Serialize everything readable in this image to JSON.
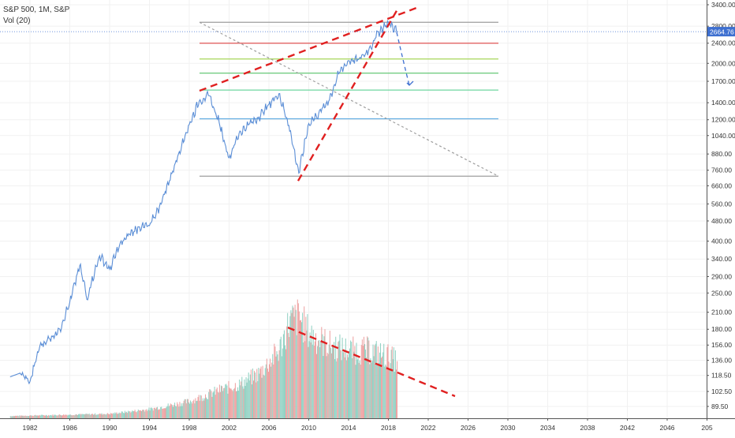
{
  "header": {
    "symbol_line": "S&P 500, 1M, S&P",
    "volume_line": "Vol (20)"
  },
  "chart_data": {
    "type": "line",
    "price_scale": "log",
    "x_ticks": [
      "1982",
      "1986",
      "1990",
      "1994",
      "1998",
      "2002",
      "2006",
      "2010",
      "2014",
      "2018",
      "2022",
      "2026",
      "2030",
      "2034",
      "2038",
      "2042",
      "2046",
      "205"
    ],
    "y_ticks": [
      "3400.00",
      "2800.00",
      "2400.00",
      "2000.00",
      "1700.00",
      "1400.00",
      "1200.00",
      "1040.00",
      "880.00",
      "760.00",
      "660.00",
      "560.00",
      "480.00",
      "400.00",
      "340.00",
      "290.00",
      "250.00",
      "210.00",
      "180.00",
      "156.00",
      "136.00",
      "118.50",
      "102.50",
      "89.50"
    ],
    "last_price_label": "2664.76",
    "last_price": 2664.76,
    "series": [
      {
        "values": [
          [
            1980,
            117
          ],
          [
            1981,
            121
          ],
          [
            1982,
            112
          ],
          [
            1983,
            155
          ],
          [
            1984,
            165
          ],
          [
            1985,
            180
          ],
          [
            1986,
            230
          ],
          [
            1987,
            320
          ],
          [
            1987.8,
            235
          ],
          [
            1988,
            262
          ],
          [
            1989,
            350
          ],
          [
            1990,
            310
          ],
          [
            1991,
            385
          ],
          [
            1992,
            425
          ],
          [
            1993,
            455
          ],
          [
            1994,
            460
          ],
          [
            1995,
            545
          ],
          [
            1996,
            690
          ],
          [
            1997,
            900
          ],
          [
            1998,
            1150
          ],
          [
            1999,
            1420
          ],
          [
            2000,
            1490
          ],
          [
            2001,
            1170
          ],
          [
            2002,
            850
          ],
          [
            2003,
            1060
          ],
          [
            2004,
            1150
          ],
          [
            2005,
            1230
          ],
          [
            2006,
            1380
          ],
          [
            2007,
            1520
          ],
          [
            2008,
            1140
          ],
          [
            2009,
            740
          ],
          [
            2010,
            1160
          ],
          [
            2011,
            1270
          ],
          [
            2012,
            1420
          ],
          [
            2013,
            1820
          ],
          [
            2014,
            2050
          ],
          [
            2015,
            2070
          ],
          [
            2016,
            2240
          ],
          [
            2017,
            2650
          ],
          [
            2018,
            2900
          ],
          [
            2018.9,
            2664.76
          ]
        ],
        "color": "#5b8ed6"
      }
    ],
    "volume": {
      "type": "bar",
      "note_scale": "overlay",
      "values": [
        [
          1980,
          2
        ],
        [
          1985,
          3
        ],
        [
          1990,
          4
        ],
        [
          1994,
          8
        ],
        [
          1998,
          15
        ],
        [
          2001,
          25
        ],
        [
          2003,
          30
        ],
        [
          2005,
          40
        ],
        [
          2007,
          60
        ],
        [
          2008,
          85
        ],
        [
          2009,
          90
        ],
        [
          2010,
          75
        ],
        [
          2012,
          65
        ],
        [
          2014,
          60
        ],
        [
          2016,
          60
        ],
        [
          2018,
          55
        ],
        [
          2018.9,
          50
        ]
      ]
    },
    "drawings": {
      "horizontal_levels": [
        {
          "price": 2900,
          "color": "#9e9e9e"
        },
        {
          "price": 2400,
          "color": "#e05555"
        },
        {
          "price": 2080,
          "color": "#a6d65a"
        },
        {
          "price": 1830,
          "color": "#57c26a"
        },
        {
          "price": 1570,
          "color": "#6fd6a0"
        },
        {
          "price": 1210,
          "color": "#5aa8e0"
        },
        {
          "price": 720,
          "color": "#9e9e9e"
        }
      ],
      "colors": {
        "upper_trend": "#e02020",
        "lower_trend": "#e02020",
        "diagonal": "#9e9e9e",
        "projection": "#3d6fd0",
        "volume_trend": "#e02020",
        "price_line": "#5b8ed6",
        "price_badge": "#3d6fd0"
      }
    }
  }
}
